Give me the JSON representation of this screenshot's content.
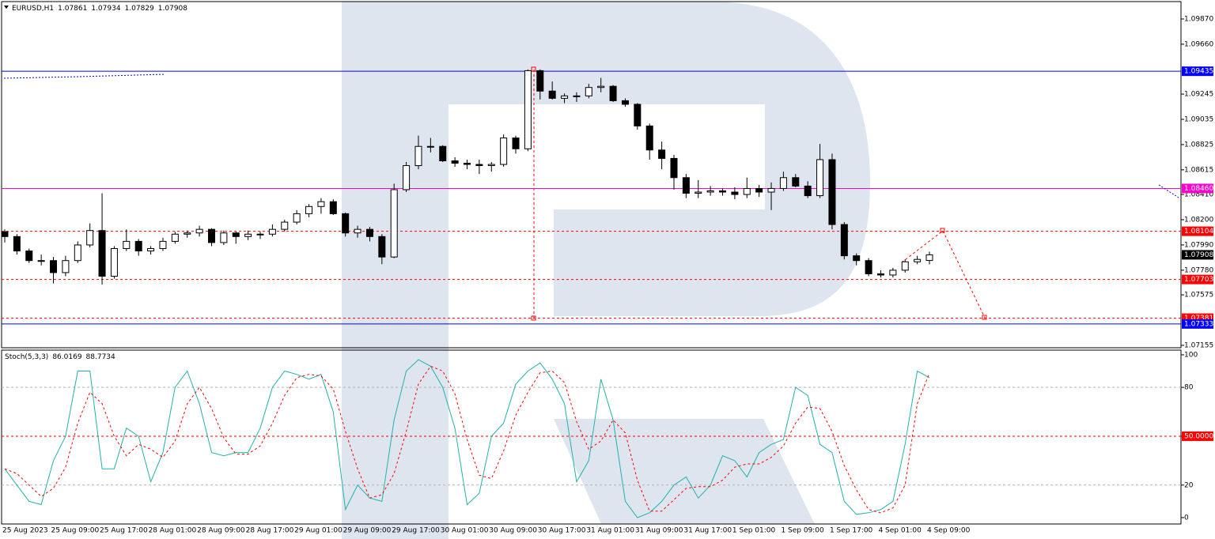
{
  "chart_data": [
    {
      "type": "candlestick",
      "title": "EURUSD,H1",
      "header_values": [
        1.07861,
        1.07934,
        1.07829,
        1.07908
      ],
      "categories": [
        "25 Aug 2023",
        null,
        null,
        null,
        "25 Aug 09:00",
        null,
        null,
        null,
        "25 Aug 17:00",
        null,
        null,
        null,
        "28 Aug 01:00",
        null,
        null,
        null,
        "28 Aug 09:00",
        null,
        null,
        null,
        "28 Aug 17:00",
        null,
        null,
        null,
        "29 Aug 01:00",
        null,
        null,
        null,
        "29 Aug 09:00",
        null,
        null,
        null,
        "29 Aug 17:00",
        null,
        null,
        null,
        "30 Aug 01:00",
        null,
        null,
        null,
        "30 Aug 09:00",
        null,
        null,
        null,
        "30 Aug 17:00",
        null,
        null,
        null,
        "31 Aug 01:00",
        null,
        null,
        null,
        "31 Aug 09:00",
        null,
        null,
        null,
        "31 Aug 17:00",
        null,
        null,
        null,
        "1 Sep 01:00",
        null,
        null,
        null,
        "1 Sep 09:00",
        null,
        null,
        null,
        "1 Sep 17:00",
        null,
        null,
        null,
        "4 Sep 01:00",
        null,
        null,
        null,
        "4 Sep 09:00"
      ],
      "ohlc": [
        [
          1.081,
          1.0812,
          1.0801,
          1.0806
        ],
        [
          1.0806,
          1.0808,
          1.0791,
          1.0794
        ],
        [
          1.0794,
          1.0796,
          1.0784,
          1.0786
        ],
        [
          1.0786,
          1.0791,
          1.0782,
          1.0786
        ],
        [
          1.0786,
          1.0789,
          1.0767,
          1.0776
        ],
        [
          1.0776,
          1.079,
          1.0773,
          1.0786
        ],
        [
          1.0786,
          1.0802,
          1.0784,
          1.0799
        ],
        [
          1.0799,
          1.0817,
          1.0797,
          1.0811
        ],
        [
          1.0811,
          1.0842,
          1.0766,
          1.0773
        ],
        [
          1.0773,
          1.0798,
          1.0771,
          1.0796
        ],
        [
          1.0796,
          1.0812,
          1.0794,
          1.0802
        ],
        [
          1.0802,
          1.0804,
          1.079,
          1.0794
        ],
        [
          1.0794,
          1.0798,
          1.0791,
          1.0796
        ],
        [
          1.0796,
          1.0805,
          1.0794,
          1.0802
        ],
        [
          1.0802,
          1.081,
          1.08,
          1.0808
        ],
        [
          1.0808,
          1.0811,
          1.0805,
          1.0809
        ],
        [
          1.0809,
          1.0815,
          1.0806,
          1.0812
        ],
        [
          1.0812,
          1.0813,
          1.0798,
          1.0801
        ],
        [
          1.0801,
          1.0811,
          1.0799,
          1.0809
        ],
        [
          1.0809,
          1.081,
          1.08,
          1.0806
        ],
        [
          1.0806,
          1.0811,
          1.0803,
          1.0808
        ],
        [
          1.0808,
          1.081,
          1.0804,
          1.0808
        ],
        [
          1.0808,
          1.0816,
          1.0806,
          1.0812
        ],
        [
          1.0812,
          1.082,
          1.081,
          1.0818
        ],
        [
          1.0818,
          1.0828,
          1.0816,
          1.0825
        ],
        [
          1.0825,
          1.0833,
          1.0822,
          1.0831
        ],
        [
          1.0831,
          1.0838,
          1.0825,
          1.0835
        ],
        [
          1.0835,
          1.0837,
          1.0824,
          1.0825
        ],
        [
          1.0825,
          1.0826,
          1.0806,
          1.0809
        ],
        [
          1.0809,
          1.0815,
          1.0805,
          1.0812
        ],
        [
          1.0812,
          1.0814,
          1.0802,
          1.0806
        ],
        [
          1.0806,
          1.0808,
          1.0783,
          1.0789
        ],
        [
          1.0789,
          1.085,
          1.0788,
          1.0845
        ],
        [
          1.0845,
          1.0868,
          1.0843,
          1.0865
        ],
        [
          1.0865,
          1.089,
          1.0862,
          1.0881
        ],
        [
          1.0881,
          1.0888,
          1.0876,
          1.0881
        ],
        [
          1.0881,
          1.0882,
          1.0868,
          1.0869
        ],
        [
          1.0869,
          1.0872,
          1.0864,
          1.0867
        ],
        [
          1.0867,
          1.087,
          1.0862,
          1.0866
        ],
        [
          1.0866,
          1.087,
          1.0858,
          1.0865
        ],
        [
          1.0865,
          1.0868,
          1.086,
          1.0866
        ],
        [
          1.0866,
          1.0891,
          1.0864,
          1.0888
        ],
        [
          1.0888,
          1.089,
          1.0875,
          1.0879
        ],
        [
          1.0879,
          1.0945,
          1.0877,
          1.0944
        ],
        [
          1.0944,
          1.0945,
          1.092,
          1.0927
        ],
        [
          1.0927,
          1.0935,
          1.092,
          1.0921
        ],
        [
          1.0921,
          1.0925,
          1.0917,
          1.0923
        ],
        [
          1.0923,
          1.0926,
          1.0918,
          1.0923
        ],
        [
          1.0923,
          1.0933,
          1.0921,
          1.093
        ],
        [
          1.093,
          1.0938,
          1.0926,
          1.0931
        ],
        [
          1.0931,
          1.0932,
          1.0918,
          1.0919
        ],
        [
          1.0919,
          1.0921,
          1.0914,
          1.0916
        ],
        [
          1.0916,
          1.0917,
          1.0895,
          1.0898
        ],
        [
          1.0898,
          1.09,
          1.087,
          1.0878
        ],
        [
          1.0878,
          1.0885,
          1.0862,
          1.0871
        ],
        [
          1.0871,
          1.0874,
          1.0845,
          1.0855
        ],
        [
          1.0855,
          1.0858,
          1.0838,
          1.0842
        ],
        [
          1.0842,
          1.0853,
          1.0838,
          1.0843
        ],
        [
          1.0843,
          1.0848,
          1.084,
          1.0844
        ],
        [
          1.0844,
          1.0846,
          1.084,
          1.0843
        ],
        [
          1.0843,
          1.0847,
          1.0837,
          1.0841
        ],
        [
          1.0841,
          1.0855,
          1.0838,
          1.0846
        ],
        [
          1.0846,
          1.0849,
          1.0839,
          1.0843
        ],
        [
          1.0843,
          1.0851,
          1.0828,
          1.0846
        ],
        [
          1.0846,
          1.086,
          1.0844,
          1.0855
        ],
        [
          1.0855,
          1.0858,
          1.0847,
          1.0848
        ],
        [
          1.0848,
          1.0852,
          1.0838,
          1.084
        ],
        [
          1.084,
          1.0883,
          1.0838,
          1.087
        ],
        [
          1.087,
          1.0875,
          1.0812,
          1.0816
        ],
        [
          1.0816,
          1.0818,
          1.0787,
          1.079
        ],
        [
          1.079,
          1.0792,
          1.0782,
          1.0786
        ],
        [
          1.0786,
          1.0788,
          1.0773,
          1.0775
        ],
        [
          1.0775,
          1.0778,
          1.0772,
          1.0774
        ],
        [
          1.0774,
          1.078,
          1.0772,
          1.0778
        ],
        [
          1.0778,
          1.0787,
          1.0776,
          1.0785
        ],
        [
          1.0785,
          1.079,
          1.0783,
          1.0787
        ],
        [
          1.07861,
          1.07934,
          1.07829,
          1.07908
        ]
      ],
      "colors": {
        "up": "#ffffff",
        "down": "#000000"
      },
      "ylim": [
        1.07135,
        1.10008
      ],
      "yticks": [
        {
          "value": 1.0987,
          "label": "1.09870"
        },
        {
          "value": 1.0966,
          "label": "1.09660"
        },
        {
          "value": 1.09245,
          "label": "1.09245"
        },
        {
          "value": 1.09035,
          "label": "1.09035"
        },
        {
          "value": 1.08825,
          "label": "1.08825"
        },
        {
          "value": 1.08615,
          "label": "1.08615"
        },
        {
          "value": 1.0841,
          "label": "1.08410"
        },
        {
          "value": 1.082,
          "label": "1.08200"
        },
        {
          "value": 1.0799,
          "label": "1.07990"
        },
        {
          "value": 1.0778,
          "label": "1.07780"
        },
        {
          "value": 1.07575,
          "label": "1.07575"
        },
        {
          "value": 1.07155,
          "label": "1.07155"
        }
      ],
      "levels": [
        {
          "value": 1.09435,
          "label": "1.09435",
          "color": "#0000ff",
          "line": "solid"
        },
        {
          "value": 1.0846,
          "label": "1.08460",
          "color": "#ff00cc",
          "line": "solid"
        },
        {
          "value": 1.08104,
          "label": "1.08104",
          "color": "#ff0000",
          "line": "dashed"
        },
        {
          "value": 1.07908,
          "label": "1.07908",
          "color": "#000000",
          "line": "none"
        },
        {
          "value": 1.07703,
          "label": "1.07703",
          "color": "#ff0000",
          "line": "dashed"
        },
        {
          "value": 1.07381,
          "label": "1.07381",
          "color": "#ff0000",
          "line": "dashed"
        },
        {
          "value": 1.07333,
          "label": "1.07333",
          "color": "#0000ff",
          "line": "solid"
        }
      ]
    },
    {
      "type": "line",
      "title": "Stoch(5,3,3)",
      "header_values": [
        86.0169,
        88.7734
      ],
      "series": [
        {
          "color": "#20b2aa",
          "style": "solid",
          "values": [
            30,
            20,
            10,
            8,
            35,
            50,
            90,
            90,
            30,
            30,
            55,
            50,
            22,
            40,
            80,
            90,
            70,
            40,
            38,
            40,
            40,
            55,
            80,
            90,
            88,
            85,
            88,
            65,
            5,
            20,
            12,
            10,
            60,
            90,
            97,
            93,
            80,
            55,
            8,
            15,
            50,
            58,
            82,
            90,
            95,
            85,
            70,
            22,
            35,
            85,
            60,
            10,
            0,
            3,
            10,
            20,
            25,
            12,
            20,
            38,
            35,
            25,
            40,
            45,
            48,
            80,
            75,
            45,
            40,
            10,
            2,
            3,
            5,
            10,
            45,
            90,
            86.0169
          ]
        },
        {
          "color": "#ff0000",
          "style": "dashed",
          "values": [
            30,
            27,
            20,
            13,
            18,
            31,
            58,
            77,
            70,
            50,
            38,
            45,
            42,
            37,
            47,
            70,
            80,
            67,
            49,
            39,
            39,
            44,
            58,
            75,
            86,
            88,
            87,
            79,
            53,
            30,
            12,
            14,
            27,
            53,
            82,
            93,
            90,
            76,
            48,
            26,
            24,
            41,
            63,
            77,
            89,
            90,
            83,
            59,
            42,
            47,
            60,
            52,
            23,
            4,
            4,
            11,
            18,
            19,
            19,
            23,
            31,
            33,
            33,
            37,
            44,
            58,
            68,
            67,
            53,
            32,
            17,
            5,
            3,
            6,
            20,
            70,
            88.7734
          ]
        }
      ],
      "ylim": [
        -3.9,
        102.4
      ],
      "yticks": [
        100,
        80,
        {
          "value": 50,
          "label": "50.0000",
          "color": "#ff0000"
        },
        20,
        0
      ],
      "levels": [
        {
          "value": 80,
          "color": "#b4b4b4"
        },
        {
          "value": 50,
          "color": "#ff0000"
        },
        {
          "value": 20,
          "color": "#b4b4b4"
        }
      ]
    }
  ]
}
